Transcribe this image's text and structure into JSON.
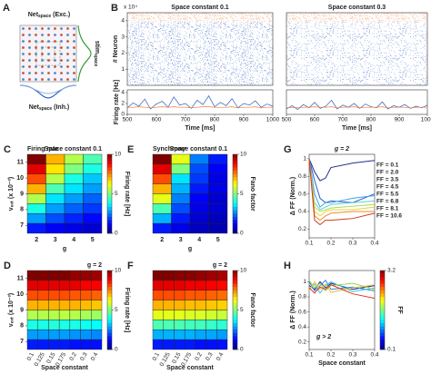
{
  "diagram": {
    "panel": "A",
    "top": {
      "main": "Net",
      "sub": "space",
      "tail": " (Exc.)"
    },
    "side": {
      "main": "stim",
      "sub": "space"
    },
    "bottom": {
      "main": "Net",
      "sub": "space",
      "tail": " (Inh.)"
    }
  },
  "chart_data": [
    {
      "type": "raster",
      "panel": "B",
      "title": "Space constant 0.1",
      "ylabel": "# Neuron",
      "yscale_label": "x 10⁴",
      "ylim": [
        0,
        4.5
      ],
      "yticks": [
        1,
        2,
        3,
        4
      ]
    },
    {
      "type": "raster",
      "title": "Space constant 0.3",
      "ylim": [
        0,
        4.5
      ]
    },
    {
      "type": "line",
      "ylabel": "Firing rate [Hz]",
      "xlabel": "Time [ms]",
      "x": [
        500,
        520,
        540,
        560,
        580,
        600,
        620,
        640,
        660,
        680,
        700,
        720,
        740,
        760,
        780,
        800,
        820,
        840,
        860,
        880,
        900,
        920,
        940,
        960,
        980,
        1000
      ],
      "xlim": [
        500,
        1000
      ],
      "xticks": [
        500,
        600,
        700,
        800,
        900,
        1000
      ],
      "ylim": [
        0,
        4.5
      ],
      "yticks": [
        0,
        2,
        4
      ],
      "series": [
        {
          "color": "#2a5fc0",
          "values": [
            1.2,
            2.1,
            1.5,
            2.8,
            1.0,
            1.9,
            2.4,
            1.3,
            3.2,
            1.7,
            2.0,
            1.1,
            2.6,
            1.8,
            3.4,
            1.4,
            2.2,
            1.6,
            2.9,
            1.2,
            2.0,
            1.7,
            2.5,
            1.3,
            1.9,
            1.5
          ]
        },
        {
          "color": "#f07a30",
          "values": [
            1.3,
            1.3,
            1.4,
            1.3,
            1.2,
            1.3,
            1.4,
            1.3,
            1.4,
            1.3,
            1.3,
            1.2,
            1.3,
            1.4,
            1.4,
            1.3,
            1.3,
            1.3,
            1.4,
            1.2,
            1.3,
            1.3,
            1.4,
            1.2,
            1.3,
            1.3
          ]
        }
      ]
    },
    {
      "type": "line",
      "xlabel": "Time [ms]",
      "x": [
        500,
        520,
        540,
        560,
        580,
        600,
        620,
        640,
        660,
        680,
        700,
        720,
        740,
        760,
        780,
        800,
        820,
        840,
        860,
        880,
        900,
        920,
        940,
        960,
        980,
        1000
      ],
      "xlim": [
        500,
        1000
      ],
      "xticks": [
        500,
        600,
        700,
        800,
        900,
        1000
      ],
      "ylim": [
        0,
        4.5
      ],
      "series": [
        {
          "color": "#2a5fc0",
          "values": [
            1.0,
            1.6,
            0.9,
            1.8,
            1.2,
            2.2,
            1.1,
            1.5,
            2.6,
            1.0,
            1.7,
            1.3,
            2.0,
            1.1,
            1.9,
            1.4,
            1.2,
            2.3,
            1.0,
            1.6,
            1.3,
            1.8,
            1.1,
            1.5,
            1.2,
            1.7
          ]
        },
        {
          "color": "#f07a30",
          "values": [
            1.2,
            1.3,
            1.2,
            1.3,
            1.3,
            1.4,
            1.3,
            1.3,
            1.4,
            1.2,
            1.3,
            1.3,
            1.4,
            1.2,
            1.3,
            1.3,
            1.3,
            1.4,
            1.2,
            1.3,
            1.3,
            1.3,
            1.2,
            1.3,
            1.3,
            1.3
          ]
        }
      ]
    },
    {
      "type": "heatmap",
      "panel": "C",
      "title": "Firing rate",
      "subtitle": "Space constant 0.1",
      "ylabel": "vₑₓₜ (x 10⁻³)",
      "xlabel": "g",
      "categories": [
        "2",
        "3",
        "4",
        "5"
      ],
      "ylim": [
        6.5,
        11.5
      ],
      "yticks": [
        7,
        8,
        9,
        10,
        11
      ],
      "values": [
        [
          10,
          7,
          5.5,
          4.5
        ],
        [
          9,
          6.5,
          5,
          4
        ],
        [
          8,
          5.5,
          4,
          3.2
        ],
        [
          7,
          4.5,
          3.5,
          2.8
        ],
        [
          5.5,
          3.5,
          2.8,
          2.2
        ],
        [
          4,
          2.8,
          2.2,
          1.8
        ],
        [
          2.8,
          2,
          1.6,
          1.3
        ],
        [
          1.5,
          1.2,
          1,
          0.8
        ]
      ],
      "clim": [
        0,
        10
      ],
      "cticks": [
        0,
        5,
        10
      ],
      "clabel": "Firing rate [Hz]"
    },
    {
      "type": "heatmap",
      "panel": "E",
      "title": "Synchrony",
      "subtitle": "Space constant 0.1",
      "xlabel": "g",
      "categories": [
        "2",
        "3",
        "4",
        "5"
      ],
      "ylim": [
        6.5,
        11.5
      ],
      "values": [
        [
          10,
          6,
          2.5,
          1.5
        ],
        [
          9,
          5,
          2,
          1.2
        ],
        [
          8,
          3.5,
          1.8,
          1
        ],
        [
          7,
          3,
          1.5,
          1
        ],
        [
          6,
          2.5,
          1.2,
          0.8
        ],
        [
          4.5,
          2,
          1,
          0.8
        ],
        [
          3,
          1.5,
          0.8,
          0.6
        ],
        [
          1.5,
          1,
          0.6,
          0.5
        ]
      ],
      "clim": [
        0,
        10
      ],
      "cticks": [
        0,
        5,
        10
      ],
      "clabel": "Fano factor"
    },
    {
      "type": "line",
      "panel": "G",
      "title": "g = 2",
      "ylabel": "Δ FF (Norm.)",
      "x": [
        0.1,
        0.125,
        0.15,
        0.175,
        0.2,
        0.3,
        0.4
      ],
      "xlim": [
        0.1,
        0.4
      ],
      "xticks": [
        0.1,
        0.2,
        0.3,
        0.4
      ],
      "ylim": [
        0.1,
        1.05
      ],
      "yticks": [
        0.2,
        0.4,
        0.6,
        0.8,
        1
      ],
      "legend": "right",
      "series": [
        {
          "name": "FF = 0.1",
          "color": "#1f2f8f",
          "values": [
            1,
            0.85,
            0.75,
            0.78,
            0.9,
            0.95,
            0.98
          ]
        },
        {
          "name": "FF = 2.0",
          "color": "#2a5bd7",
          "values": [
            1,
            0.75,
            0.55,
            0.5,
            0.52,
            0.5,
            0.6
          ]
        },
        {
          "name": "FF = 3.5",
          "color": "#3da5e0",
          "values": [
            1,
            0.6,
            0.45,
            0.5,
            0.5,
            0.55,
            0.58
          ]
        },
        {
          "name": "FF = 4.5",
          "color": "#5fd0c8",
          "values": [
            1,
            0.5,
            0.42,
            0.45,
            0.48,
            0.5,
            0.52
          ]
        },
        {
          "name": "FF = 5.5",
          "color": "#a8dc5a",
          "values": [
            1,
            0.45,
            0.4,
            0.42,
            0.44,
            0.46,
            0.48
          ]
        },
        {
          "name": "FF = 6.8",
          "color": "#e8d33a",
          "values": [
            1,
            0.4,
            0.35,
            0.4,
            0.42,
            0.42,
            0.45
          ]
        },
        {
          "name": "FF = 8.1",
          "color": "#f08a2a",
          "values": [
            1,
            0.35,
            0.3,
            0.35,
            0.38,
            0.4,
            0.4
          ]
        },
        {
          "name": "FF = 10.6",
          "color": "#d13a1a",
          "values": [
            1,
            0.3,
            0.25,
            0.3,
            0.3,
            0.32,
            0.38
          ]
        }
      ]
    },
    {
      "type": "heatmap",
      "panel": "D",
      "subtitle": "g = 2",
      "ylabel": "vₑₓₜ (x 10⁻³)",
      "xlabel": "Space constant",
      "categories": [
        "0.1",
        "0.125",
        "0.15",
        "0.175",
        "0.2",
        "0.3",
        "0.4"
      ],
      "ylim": [
        6.5,
        11.5
      ],
      "yticks": [
        7,
        8,
        9,
        10,
        11
      ],
      "values": [
        [
          10,
          10,
          10,
          10,
          9.8,
          9.8,
          9.7
        ],
        [
          9,
          9,
          9,
          9,
          9,
          8.8,
          8.8
        ],
        [
          8,
          8,
          8,
          8,
          7.9,
          7.9,
          7.8
        ],
        [
          7,
          7,
          7,
          7,
          7,
          6.9,
          6.8
        ],
        [
          5.5,
          5.5,
          5.5,
          5.6,
          5.5,
          5.4,
          5.3
        ],
        [
          4,
          4,
          4.1,
          4,
          4,
          3.9,
          3.8
        ],
        [
          2.8,
          2.8,
          2.8,
          2.8,
          2.7,
          2.7,
          2.6
        ],
        [
          1.5,
          1.5,
          1.5,
          1.5,
          1.4,
          1.4,
          1.4
        ]
      ],
      "clim": [
        0,
        10
      ],
      "cticks": [
        0,
        5,
        10
      ],
      "clabel": "Firing rate [Hz]"
    },
    {
      "type": "heatmap",
      "panel": "F",
      "subtitle": "g = 2",
      "xlabel": "Space constant",
      "categories": [
        "0.1",
        "0.125",
        "0.15",
        "0.175",
        "0.2",
        "0.3",
        "0.4"
      ],
      "ylim": [
        6.5,
        11.5
      ],
      "values": [
        [
          10,
          10,
          9.9,
          9.9,
          9.8,
          9.7,
          9.6
        ],
        [
          9,
          9,
          9,
          8.9,
          8.9,
          8.8,
          8.7
        ],
        [
          8,
          8,
          8,
          7.9,
          7.9,
          7.8,
          7.7
        ],
        [
          7,
          7,
          7,
          6.9,
          6.9,
          6.8,
          6.7
        ],
        [
          6,
          6,
          6,
          5.9,
          5.9,
          5.8,
          5.7
        ],
        [
          4.5,
          4.5,
          4.5,
          4.4,
          4.4,
          4.3,
          4.2
        ],
        [
          3,
          3,
          3,
          3,
          2.9,
          2.9,
          2.8
        ],
        [
          1.5,
          1.5,
          1.5,
          1.5,
          1.4,
          1.4,
          1.4
        ]
      ],
      "clim": [
        0,
        10
      ],
      "cticks": [
        0,
        5,
        10
      ],
      "clabel": "Fano factor"
    },
    {
      "type": "line",
      "panel": "H",
      "annotation": "g > 2",
      "ylabel": "Δ FF (Norm.)",
      "xlabel": "Space constant",
      "x": [
        0.1,
        0.125,
        0.15,
        0.175,
        0.2,
        0.3,
        0.4
      ],
      "xlim": [
        0.1,
        0.4
      ],
      "xticks": [
        0.1,
        0.2,
        0.3,
        0.4
      ],
      "ylim": [
        0.1,
        1.15
      ],
      "yticks": [
        0.2,
        0.4,
        0.6,
        0.8,
        1
      ],
      "clim": [
        0.1,
        3.2
      ],
      "cticks": [
        0.1,
        3.2
      ],
      "clabel": "FF",
      "series": [
        {
          "color": "#1a2a9a",
          "values": [
            0.95,
            0.9,
            1.0,
            0.92,
            0.98,
            0.9,
            0.95
          ]
        },
        {
          "color": "#2f7fe0",
          "values": [
            1.0,
            0.88,
            0.95,
            1.02,
            0.9,
            0.93,
            0.88
          ]
        },
        {
          "color": "#3cc0d8",
          "values": [
            0.9,
            0.97,
            0.85,
            0.95,
            1.0,
            0.87,
            0.92
          ]
        },
        {
          "color": "#9ad84a",
          "values": [
            1.02,
            0.92,
            0.98,
            0.88,
            0.95,
            0.98,
            0.9
          ]
        },
        {
          "color": "#f0c030",
          "values": [
            0.88,
            1.0,
            0.9,
            0.97,
            0.86,
            0.92,
            0.96
          ]
        },
        {
          "color": "#e03a1e",
          "values": [
            0.92,
            0.85,
            0.93,
            0.9,
            0.96,
            0.84,
            0.78
          ]
        }
      ]
    }
  ]
}
